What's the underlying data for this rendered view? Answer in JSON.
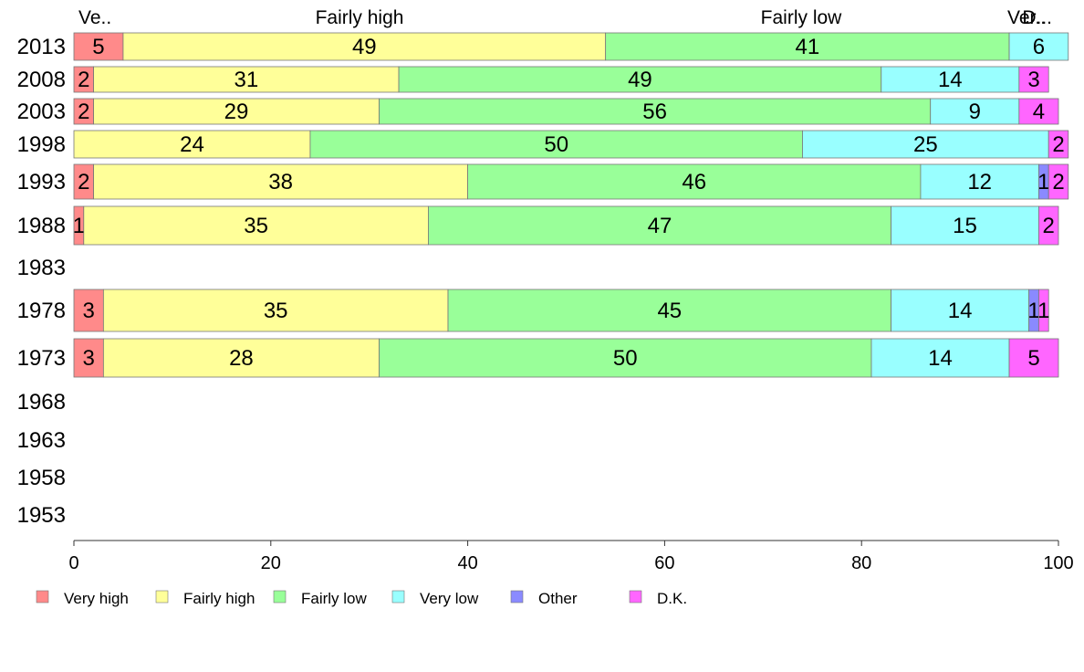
{
  "chart_data": {
    "type": "bar",
    "orientation": "horizontal",
    "stacked": true,
    "title": "",
    "xlabel": "",
    "ylabel": "",
    "xlim": [
      0,
      100
    ],
    "xticks": [
      "0",
      "20",
      "40",
      "60",
      "80",
      "100"
    ],
    "grid": false,
    "legend_position": "bottom",
    "column_headers": [
      "Ve..",
      "Fairly high",
      "Fairly low",
      "Ver..",
      "D..."
    ],
    "categories": [
      "2013",
      "2008",
      "2003",
      "1998",
      "1993",
      "1988",
      "1983",
      "1978",
      "1973",
      "1968",
      "1963",
      "1958",
      "1953"
    ],
    "series": [
      {
        "name": "Very high",
        "color": "#FF8A8A",
        "values": [
          5,
          2,
          2,
          0,
          2,
          1,
          null,
          3,
          3,
          null,
          null,
          null,
          null
        ],
        "labels": [
          "5",
          "2",
          "2",
          "",
          "2",
          "1",
          "",
          "3",
          "3",
          "",
          "",
          "",
          ""
        ]
      },
      {
        "name": "Fairly high",
        "color": "#FFFF99",
        "values": [
          49,
          31,
          29,
          24,
          38,
          35,
          null,
          35,
          28,
          null,
          null,
          null,
          null
        ],
        "labels": [
          "49",
          "31",
          "29",
          "24",
          "38",
          "35",
          "",
          "35",
          "28",
          "",
          "",
          "",
          ""
        ]
      },
      {
        "name": "Fairly low",
        "color": "#99FF99",
        "values": [
          41,
          49,
          56,
          50,
          46,
          47,
          null,
          45,
          50,
          null,
          null,
          null,
          null
        ],
        "labels": [
          "41",
          "49",
          "56",
          "50",
          "46",
          "47",
          "",
          "45",
          "50",
          "",
          "",
          "",
          ""
        ]
      },
      {
        "name": "Very low",
        "color": "#99FFFF",
        "values": [
          6,
          14,
          9,
          25,
          12,
          15,
          null,
          14,
          14,
          null,
          null,
          null,
          null
        ],
        "labels": [
          "6",
          "14",
          "9",
          "25",
          "12",
          "15",
          "",
          "14",
          "14",
          "",
          "",
          "",
          ""
        ]
      },
      {
        "name": "Other",
        "color": "#8A8AFF",
        "values": [
          0,
          0,
          0,
          0,
          1,
          0,
          null,
          1,
          0,
          null,
          null,
          null,
          null
        ],
        "labels": [
          "",
          "",
          "",
          "",
          "1",
          "",
          "",
          "1",
          "",
          "",
          "",
          "",
          ""
        ]
      },
      {
        "name": "D.K.",
        "color": "#FF66FF",
        "values": [
          0,
          3,
          4,
          2,
          2,
          2,
          null,
          1,
          5,
          null,
          null,
          null,
          null
        ],
        "labels": [
          "",
          "3",
          "4",
          "2",
          "2",
          "2",
          "",
          "1",
          "5",
          "",
          "",
          "",
          ""
        ]
      }
    ]
  }
}
